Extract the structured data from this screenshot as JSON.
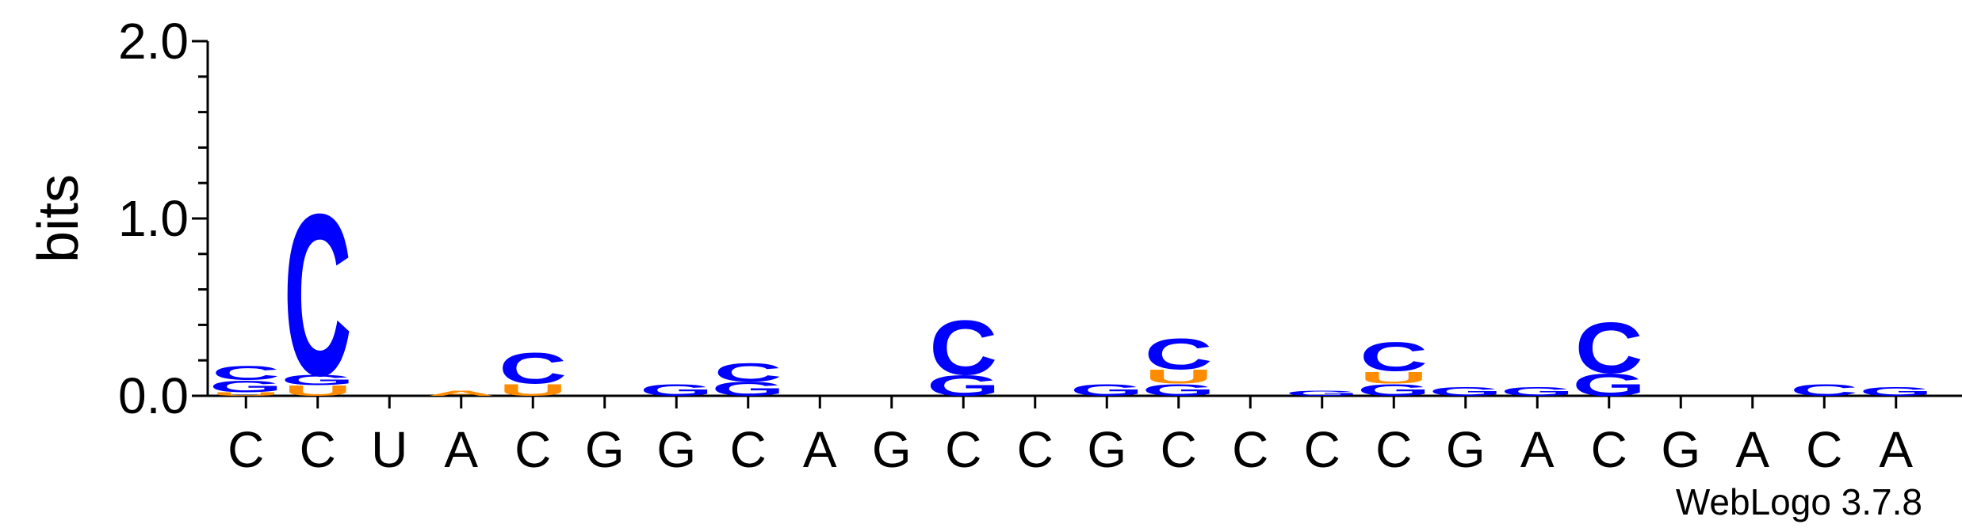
{
  "chart_data": {
    "type": "sequence-logo",
    "ylabel": "bits",
    "ylim": [
      0,
      2.0
    ],
    "yticks": [
      "0.0",
      "1.0",
      "2.0"
    ],
    "positions": [
      "C",
      "C",
      "U",
      "A",
      "C",
      "G",
      "G",
      "C",
      "A",
      "G",
      "C",
      "C",
      "G",
      "C",
      "C",
      "C",
      "C",
      "G",
      "A",
      "C",
      "G",
      "A",
      "C",
      "A"
    ],
    "colors": {
      "C": "#0000ff",
      "G": "#0000ff",
      "U": "#ff8c00",
      "A": "#ff8c00"
    },
    "stacks": [
      [
        {
          "l": "U",
          "h": 0.02
        },
        {
          "l": "G",
          "h": 0.07
        },
        {
          "l": "C",
          "h": 0.08
        }
      ],
      [
        {
          "l": "U",
          "h": 0.06
        },
        {
          "l": "G",
          "h": 0.06
        },
        {
          "l": "C",
          "h": 0.95
        }
      ],
      [],
      [
        {
          "l": "A",
          "h": 0.03
        }
      ],
      [
        {
          "l": "U",
          "h": 0.07
        },
        {
          "l": "C",
          "h": 0.18
        }
      ],
      [],
      [
        {
          "l": "G",
          "h": 0.07
        }
      ],
      [
        {
          "l": "G",
          "h": 0.08
        },
        {
          "l": "C",
          "h": 0.11
        }
      ],
      [],
      [],
      [
        {
          "l": "G",
          "h": 0.12
        },
        {
          "l": "C",
          "h": 0.32
        }
      ],
      [],
      [
        {
          "l": "G",
          "h": 0.07
        }
      ],
      [
        {
          "l": "G",
          "h": 0.07
        },
        {
          "l": "U",
          "h": 0.08
        },
        {
          "l": "C",
          "h": 0.18
        }
      ],
      [],
      [
        {
          "l": "G",
          "h": 0.03
        }
      ],
      [
        {
          "l": "G",
          "h": 0.07
        },
        {
          "l": "U",
          "h": 0.07
        },
        {
          "l": "C",
          "h": 0.17
        }
      ],
      [
        {
          "l": "G",
          "h": 0.05
        }
      ],
      [
        {
          "l": "G",
          "h": 0.05
        }
      ],
      [
        {
          "l": "G",
          "h": 0.13
        },
        {
          "l": "C",
          "h": 0.3
        }
      ],
      [],
      [],
      [
        {
          "l": "C",
          "h": 0.07
        }
      ],
      [
        {
          "l": "G",
          "h": 0.05
        }
      ]
    ]
  },
  "credit": "WebLogo 3.7.8"
}
